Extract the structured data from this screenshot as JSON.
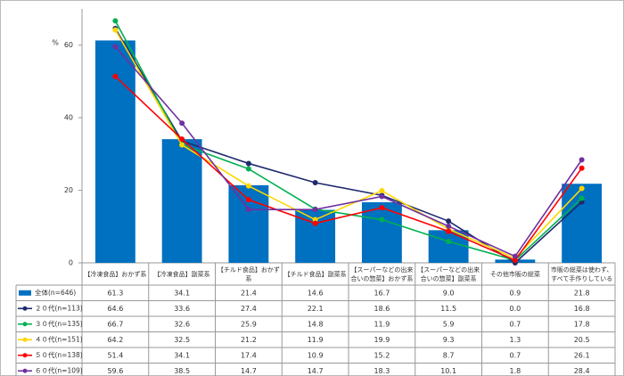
{
  "chart_data": {
    "type": "bar-line",
    "y_label": "%",
    "categories": [
      "【冷凍食品】おかず系",
      "【冷凍食品】副菜系",
      "【チルド食品】おかず系",
      "【チルド食品】副菜系",
      "【スーパーなどの出来合いの惣菜】おかず系",
      "【スーパーなどの出来合いの惣菜】副菜系",
      "その他市販の総菜",
      "市販の総菜は使わず、すべて手作りしている"
    ],
    "series": [
      {
        "name": "全体(n=646)",
        "type": "bar",
        "color": "#0070c0",
        "values": [
          61.3,
          34.1,
          21.4,
          14.6,
          16.7,
          9.0,
          0.9,
          21.8
        ],
        "value_labels": [
          "61.3",
          "34.1",
          "21.4",
          "14.6",
          "16.7",
          "9.0",
          "0.9",
          "21.8"
        ]
      },
      {
        "name": "２０代(n=113)",
        "type": "line",
        "color": "#1f2a6e",
        "values": [
          64.6,
          33.6,
          27.4,
          22.1,
          18.6,
          11.5,
          0.0,
          16.8
        ],
        "value_labels": [
          "64.6",
          "33.6",
          "27.4",
          "22.1",
          "18.6",
          "11.5",
          "0.0",
          "16.8"
        ]
      },
      {
        "name": "３０代(n=135)",
        "type": "line",
        "color": "#00b050",
        "values": [
          66.7,
          32.6,
          25.9,
          14.8,
          11.9,
          5.9,
          0.7,
          17.8
        ],
        "value_labels": [
          "66.7",
          "32.6",
          "25.9",
          "14.8",
          "11.9",
          "5.9",
          "0.7",
          "17.8"
        ]
      },
      {
        "name": "４０代(n=151)",
        "type": "line",
        "color": "#ffd700",
        "values": [
          64.2,
          32.5,
          21.2,
          11.9,
          19.9,
          9.3,
          1.3,
          20.5
        ],
        "value_labels": [
          "64.2",
          "32.5",
          "21.2",
          "11.9",
          "19.9",
          "9.3",
          "1.3",
          "20.5"
        ]
      },
      {
        "name": "５０代(n=138)",
        "type": "line",
        "color": "#ff0000",
        "values": [
          51.4,
          34.1,
          17.4,
          10.9,
          15.2,
          8.7,
          0.7,
          26.1
        ],
        "value_labels": [
          "51.4",
          "34.1",
          "17.4",
          "10.9",
          "15.2",
          "8.7",
          "0.7",
          "26.1"
        ]
      },
      {
        "name": "６０代(n=109)",
        "type": "line",
        "color": "#7030a0",
        "values": [
          59.6,
          38.5,
          14.7,
          14.7,
          18.3,
          10.1,
          1.8,
          28.4
        ],
        "value_labels": [
          "59.6",
          "38.5",
          "14.7",
          "14.7",
          "18.3",
          "10.1",
          "1.8",
          "28.4"
        ]
      }
    ],
    "ylim": [
      0,
      70
    ],
    "yticks": [
      0,
      20,
      40,
      60
    ],
    "grid": false
  }
}
